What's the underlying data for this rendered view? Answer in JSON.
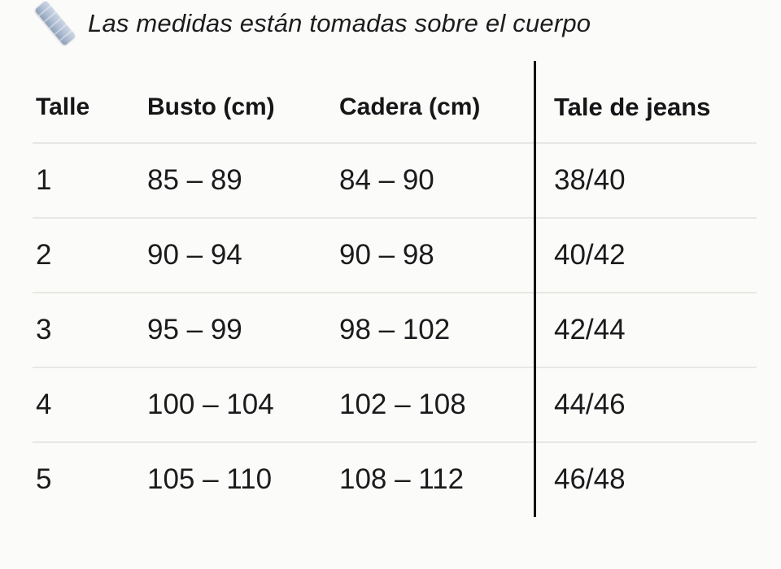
{
  "header": {
    "icon": "ruler-icon",
    "title": "Las medidas están tomadas sobre el cuerpo"
  },
  "table": {
    "columns": [
      {
        "label": "Talle"
      },
      {
        "label": "Busto (cm)"
      },
      {
        "label": "Cadera (cm)"
      },
      {
        "label": "Tale de jeans"
      }
    ],
    "rows": [
      {
        "talle": "1",
        "busto": "85 – 89",
        "cadera": "84 – 90",
        "jeans": "38/40"
      },
      {
        "talle": "2",
        "busto": "90 – 94",
        "cadera": "90 – 98",
        "jeans": "40/42"
      },
      {
        "talle": "3",
        "busto": "95 – 99",
        "cadera": "98 – 102",
        "jeans": "42/44"
      },
      {
        "talle": "4",
        "busto": "100 – 104",
        "cadera": "102 – 108",
        "jeans": "44/46"
      },
      {
        "talle": "5",
        "busto": "105 – 110",
        "cadera": "108 – 112",
        "jeans": "46/48"
      }
    ]
  },
  "colors": {
    "background": "#fbfbf9",
    "text": "#1b1b1d",
    "divider": "#e7e7e4",
    "column_rule": "#121212",
    "ruler_icon_fill": "#aebdd2"
  }
}
